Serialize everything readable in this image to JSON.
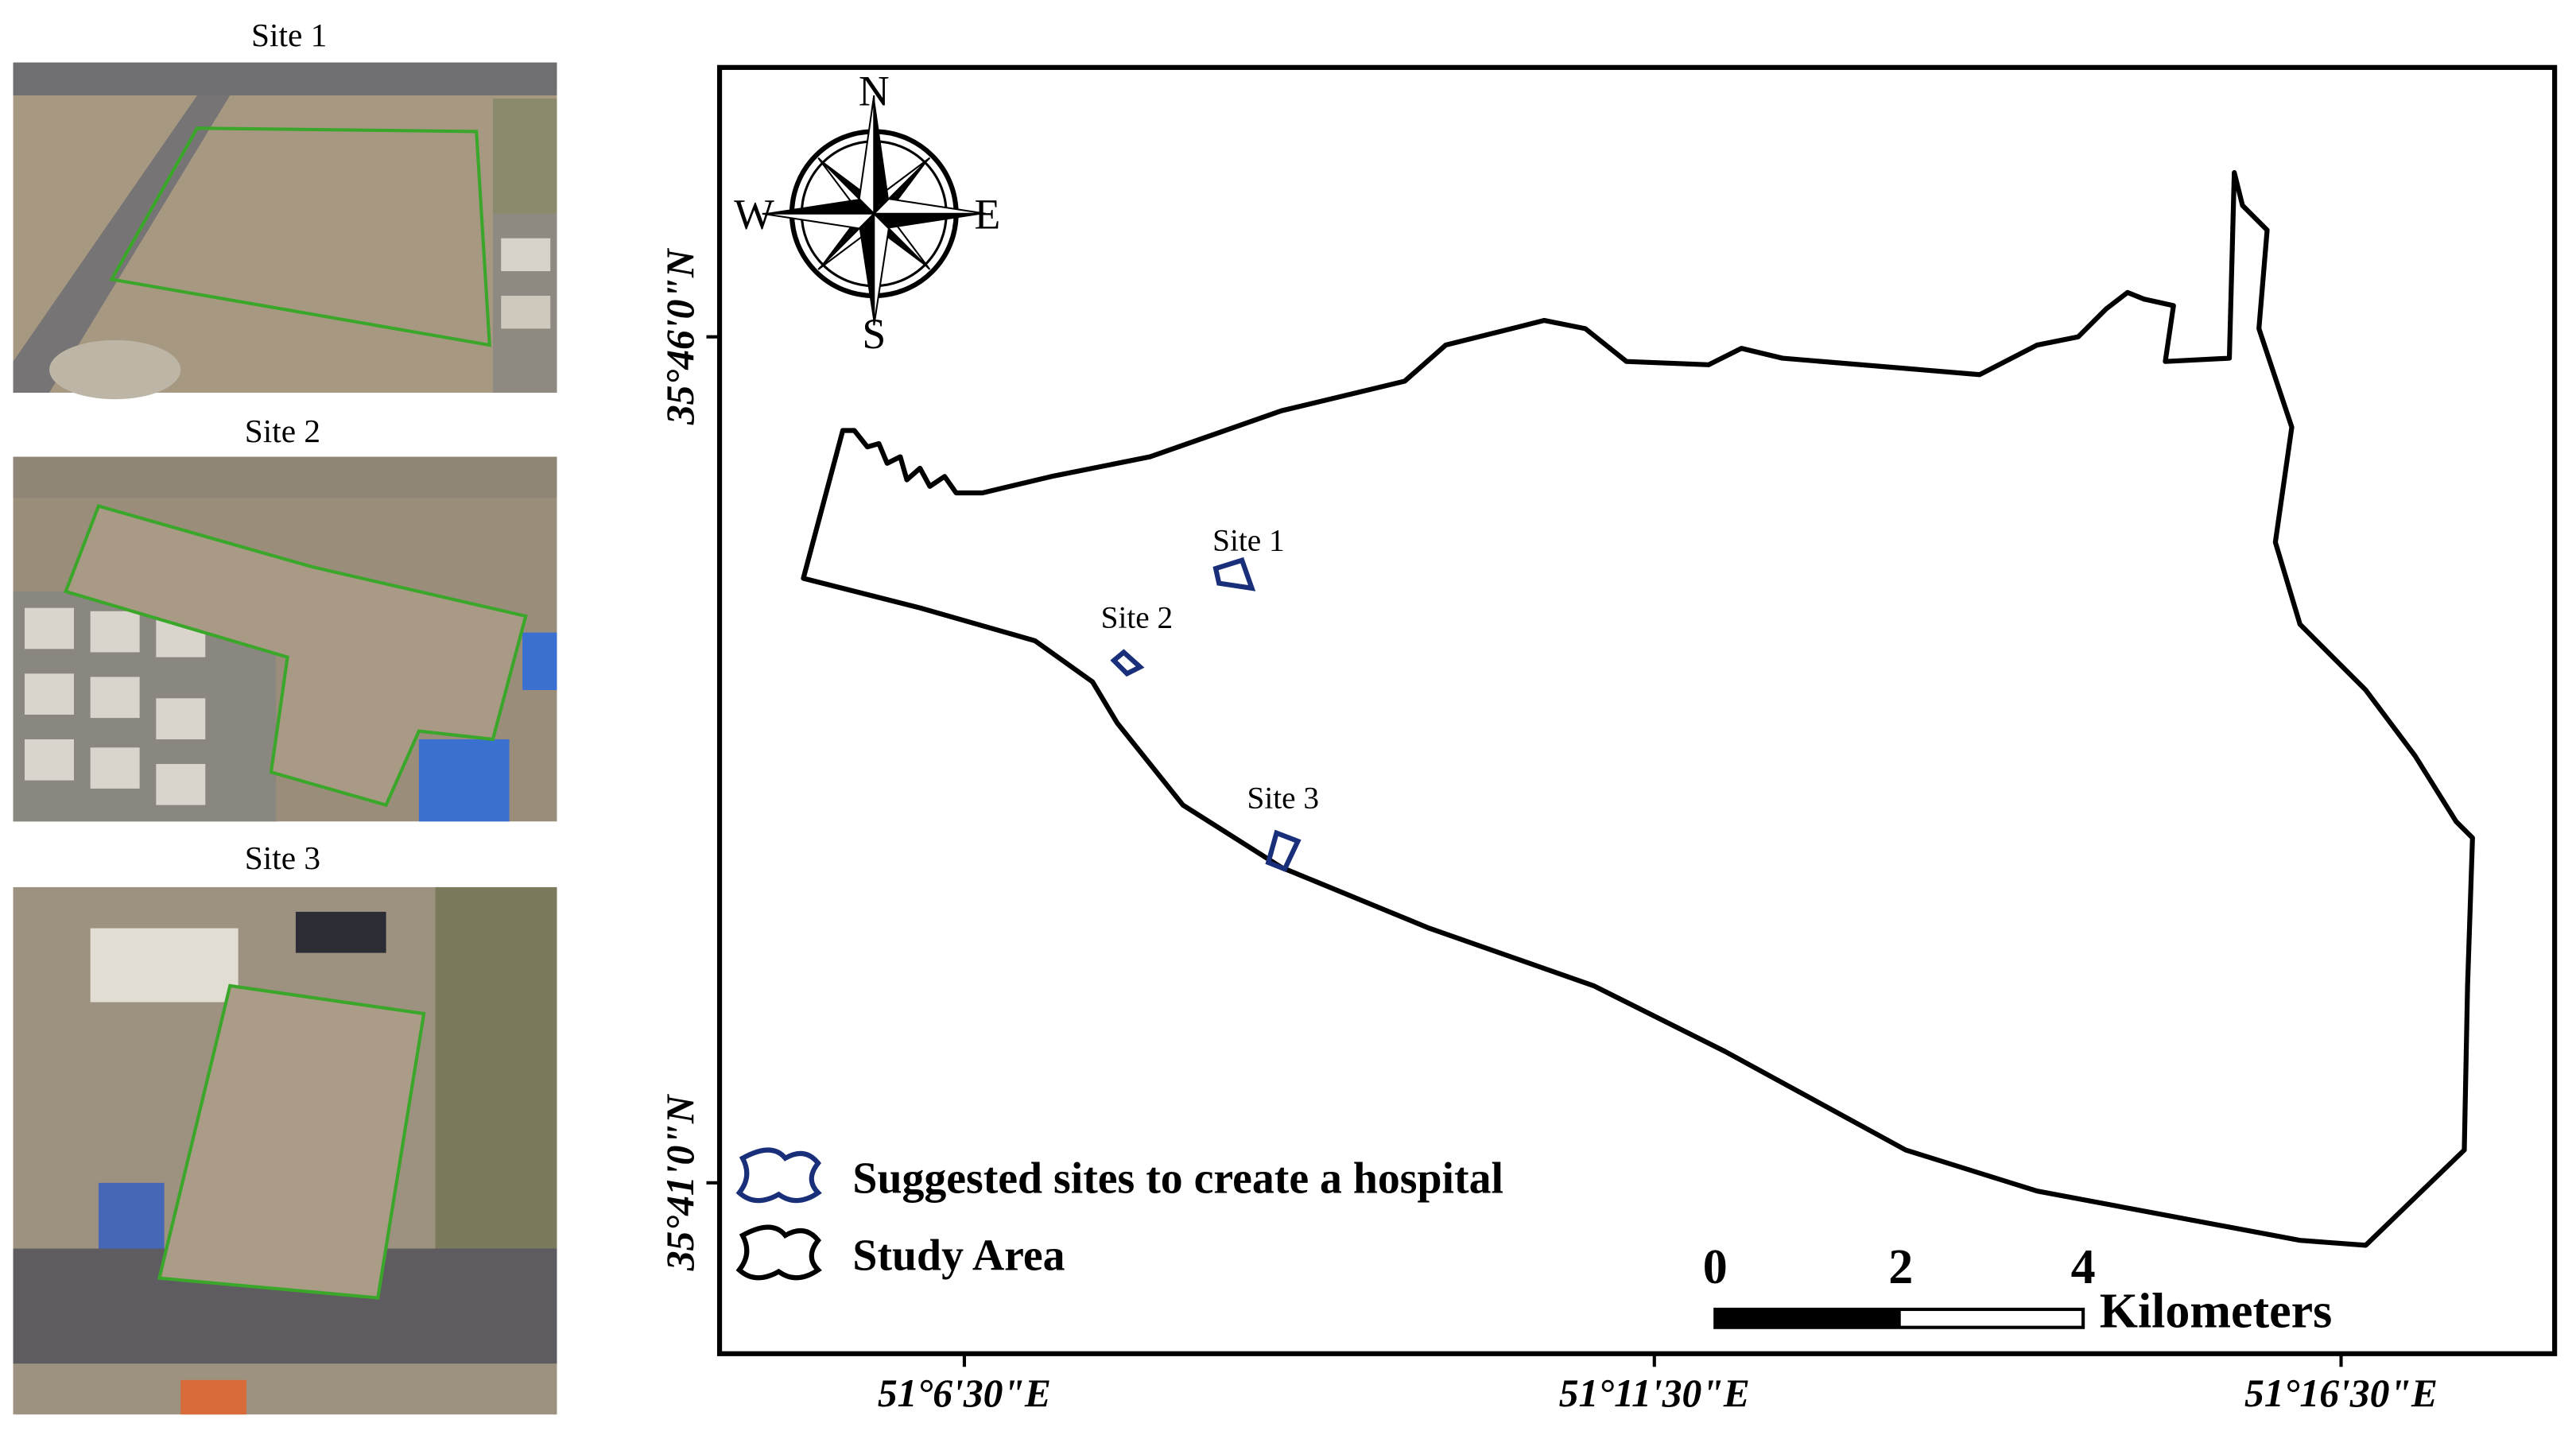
{
  "thumbnails": [
    {
      "label": "Site 1"
    },
    {
      "label": "Site 2"
    },
    {
      "label": "Site 3"
    }
  ],
  "map": {
    "compass": {
      "north": "N",
      "east": "E",
      "south": "S",
      "west": "W"
    },
    "site_labels": [
      "Site 1",
      "Site 2",
      "Site 3"
    ],
    "legend": [
      "Suggested sites to create a hospital",
      "Study Area"
    ],
    "scale_bar": {
      "ticks": [
        0,
        2,
        4
      ],
      "unit": "Kilometers"
    },
    "x_labels": [
      "51°6'30\"E",
      "51°11'30\"E",
      "51°16'30\"E"
    ],
    "y_labels": [
      "35°46'0\"N",
      "35°41'0\"N"
    ]
  }
}
